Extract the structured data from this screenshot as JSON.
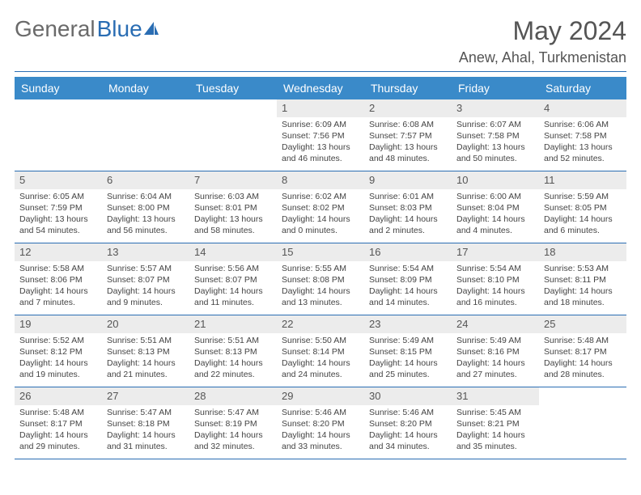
{
  "brand": {
    "part1": "General",
    "part2": "Blue"
  },
  "title": "May 2024",
  "location": "Anew, Ahal, Turkmenistan",
  "colors": {
    "header_bg": "#3a8ac9",
    "header_text": "#ffffff",
    "rule": "#2a6db3",
    "daynum_bg": "#ececec",
    "text": "#444444",
    "brand_gray": "#6a6a6a",
    "brand_blue": "#2a6db3"
  },
  "day_names": [
    "Sunday",
    "Monday",
    "Tuesday",
    "Wednesday",
    "Thursday",
    "Friday",
    "Saturday"
  ],
  "weeks": [
    [
      {
        "n": "",
        "sr": "",
        "ss": "",
        "dl": ""
      },
      {
        "n": "",
        "sr": "",
        "ss": "",
        "dl": ""
      },
      {
        "n": "",
        "sr": "",
        "ss": "",
        "dl": ""
      },
      {
        "n": "1",
        "sr": "Sunrise: 6:09 AM",
        "ss": "Sunset: 7:56 PM",
        "dl": "Daylight: 13 hours and 46 minutes."
      },
      {
        "n": "2",
        "sr": "Sunrise: 6:08 AM",
        "ss": "Sunset: 7:57 PM",
        "dl": "Daylight: 13 hours and 48 minutes."
      },
      {
        "n": "3",
        "sr": "Sunrise: 6:07 AM",
        "ss": "Sunset: 7:58 PM",
        "dl": "Daylight: 13 hours and 50 minutes."
      },
      {
        "n": "4",
        "sr": "Sunrise: 6:06 AM",
        "ss": "Sunset: 7:58 PM",
        "dl": "Daylight: 13 hours and 52 minutes."
      }
    ],
    [
      {
        "n": "5",
        "sr": "Sunrise: 6:05 AM",
        "ss": "Sunset: 7:59 PM",
        "dl": "Daylight: 13 hours and 54 minutes."
      },
      {
        "n": "6",
        "sr": "Sunrise: 6:04 AM",
        "ss": "Sunset: 8:00 PM",
        "dl": "Daylight: 13 hours and 56 minutes."
      },
      {
        "n": "7",
        "sr": "Sunrise: 6:03 AM",
        "ss": "Sunset: 8:01 PM",
        "dl": "Daylight: 13 hours and 58 minutes."
      },
      {
        "n": "8",
        "sr": "Sunrise: 6:02 AM",
        "ss": "Sunset: 8:02 PM",
        "dl": "Daylight: 14 hours and 0 minutes."
      },
      {
        "n": "9",
        "sr": "Sunrise: 6:01 AM",
        "ss": "Sunset: 8:03 PM",
        "dl": "Daylight: 14 hours and 2 minutes."
      },
      {
        "n": "10",
        "sr": "Sunrise: 6:00 AM",
        "ss": "Sunset: 8:04 PM",
        "dl": "Daylight: 14 hours and 4 minutes."
      },
      {
        "n": "11",
        "sr": "Sunrise: 5:59 AM",
        "ss": "Sunset: 8:05 PM",
        "dl": "Daylight: 14 hours and 6 minutes."
      }
    ],
    [
      {
        "n": "12",
        "sr": "Sunrise: 5:58 AM",
        "ss": "Sunset: 8:06 PM",
        "dl": "Daylight: 14 hours and 7 minutes."
      },
      {
        "n": "13",
        "sr": "Sunrise: 5:57 AM",
        "ss": "Sunset: 8:07 PM",
        "dl": "Daylight: 14 hours and 9 minutes."
      },
      {
        "n": "14",
        "sr": "Sunrise: 5:56 AM",
        "ss": "Sunset: 8:07 PM",
        "dl": "Daylight: 14 hours and 11 minutes."
      },
      {
        "n": "15",
        "sr": "Sunrise: 5:55 AM",
        "ss": "Sunset: 8:08 PM",
        "dl": "Daylight: 14 hours and 13 minutes."
      },
      {
        "n": "16",
        "sr": "Sunrise: 5:54 AM",
        "ss": "Sunset: 8:09 PM",
        "dl": "Daylight: 14 hours and 14 minutes."
      },
      {
        "n": "17",
        "sr": "Sunrise: 5:54 AM",
        "ss": "Sunset: 8:10 PM",
        "dl": "Daylight: 14 hours and 16 minutes."
      },
      {
        "n": "18",
        "sr": "Sunrise: 5:53 AM",
        "ss": "Sunset: 8:11 PM",
        "dl": "Daylight: 14 hours and 18 minutes."
      }
    ],
    [
      {
        "n": "19",
        "sr": "Sunrise: 5:52 AM",
        "ss": "Sunset: 8:12 PM",
        "dl": "Daylight: 14 hours and 19 minutes."
      },
      {
        "n": "20",
        "sr": "Sunrise: 5:51 AM",
        "ss": "Sunset: 8:13 PM",
        "dl": "Daylight: 14 hours and 21 minutes."
      },
      {
        "n": "21",
        "sr": "Sunrise: 5:51 AM",
        "ss": "Sunset: 8:13 PM",
        "dl": "Daylight: 14 hours and 22 minutes."
      },
      {
        "n": "22",
        "sr": "Sunrise: 5:50 AM",
        "ss": "Sunset: 8:14 PM",
        "dl": "Daylight: 14 hours and 24 minutes."
      },
      {
        "n": "23",
        "sr": "Sunrise: 5:49 AM",
        "ss": "Sunset: 8:15 PM",
        "dl": "Daylight: 14 hours and 25 minutes."
      },
      {
        "n": "24",
        "sr": "Sunrise: 5:49 AM",
        "ss": "Sunset: 8:16 PM",
        "dl": "Daylight: 14 hours and 27 minutes."
      },
      {
        "n": "25",
        "sr": "Sunrise: 5:48 AM",
        "ss": "Sunset: 8:17 PM",
        "dl": "Daylight: 14 hours and 28 minutes."
      }
    ],
    [
      {
        "n": "26",
        "sr": "Sunrise: 5:48 AM",
        "ss": "Sunset: 8:17 PM",
        "dl": "Daylight: 14 hours and 29 minutes."
      },
      {
        "n": "27",
        "sr": "Sunrise: 5:47 AM",
        "ss": "Sunset: 8:18 PM",
        "dl": "Daylight: 14 hours and 31 minutes."
      },
      {
        "n": "28",
        "sr": "Sunrise: 5:47 AM",
        "ss": "Sunset: 8:19 PM",
        "dl": "Daylight: 14 hours and 32 minutes."
      },
      {
        "n": "29",
        "sr": "Sunrise: 5:46 AM",
        "ss": "Sunset: 8:20 PM",
        "dl": "Daylight: 14 hours and 33 minutes."
      },
      {
        "n": "30",
        "sr": "Sunrise: 5:46 AM",
        "ss": "Sunset: 8:20 PM",
        "dl": "Daylight: 14 hours and 34 minutes."
      },
      {
        "n": "31",
        "sr": "Sunrise: 5:45 AM",
        "ss": "Sunset: 8:21 PM",
        "dl": "Daylight: 14 hours and 35 minutes."
      },
      {
        "n": "",
        "sr": "",
        "ss": "",
        "dl": ""
      }
    ]
  ]
}
